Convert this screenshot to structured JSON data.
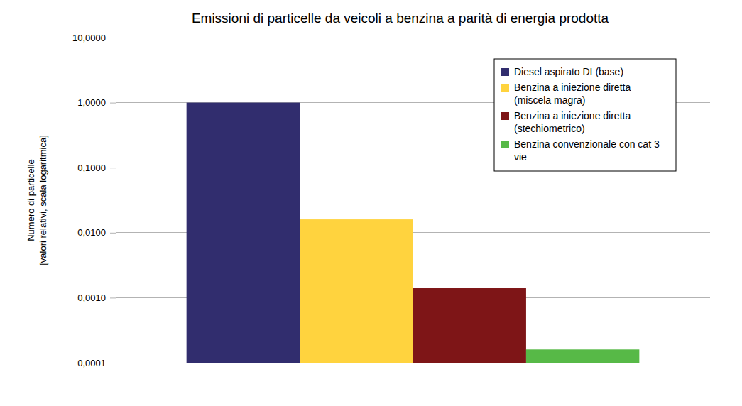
{
  "chart_data": {
    "type": "bar",
    "title": "Emissioni di particelle da veicoli a benzina a parità di energia prodotta",
    "y_label": [
      "Numero di particelle",
      "[valori relativi, scala logaritmica]"
    ],
    "categories": [
      null
    ],
    "series": [
      {
        "name": "Diesel aspirato DI (base)",
        "color": "#312d6e",
        "values": [
          1.0
        ]
      },
      {
        "name": "Benzina a iniezione diretta (miscela magra)",
        "color": "#ffd33e",
        "values": [
          0.016
        ]
      },
      {
        "name": "Benzina a iniezione diretta (stechiometrico)",
        "color": "#7e1517",
        "values": [
          0.0014
        ]
      },
      {
        "name": "Benzina convenzionale con cat 3 vie",
        "color": "#57b947",
        "values": [
          0.00016
        ]
      }
    ],
    "log": "y",
    "ylim": [
      0.0001,
      10
    ],
    "yticks": [
      {
        "value": 0.0001,
        "label": "0,0001"
      },
      {
        "value": 0.001,
        "label": "0,0010"
      },
      {
        "value": 0.01,
        "label": "0,0100"
      },
      {
        "value": 0.1,
        "label": "0,1000"
      },
      {
        "value": 1,
        "label": "1,0000"
      },
      {
        "value": 10,
        "label": "10,0000"
      }
    ],
    "grid": true,
    "legend": "top-right",
    "tick_labels": "y"
  }
}
